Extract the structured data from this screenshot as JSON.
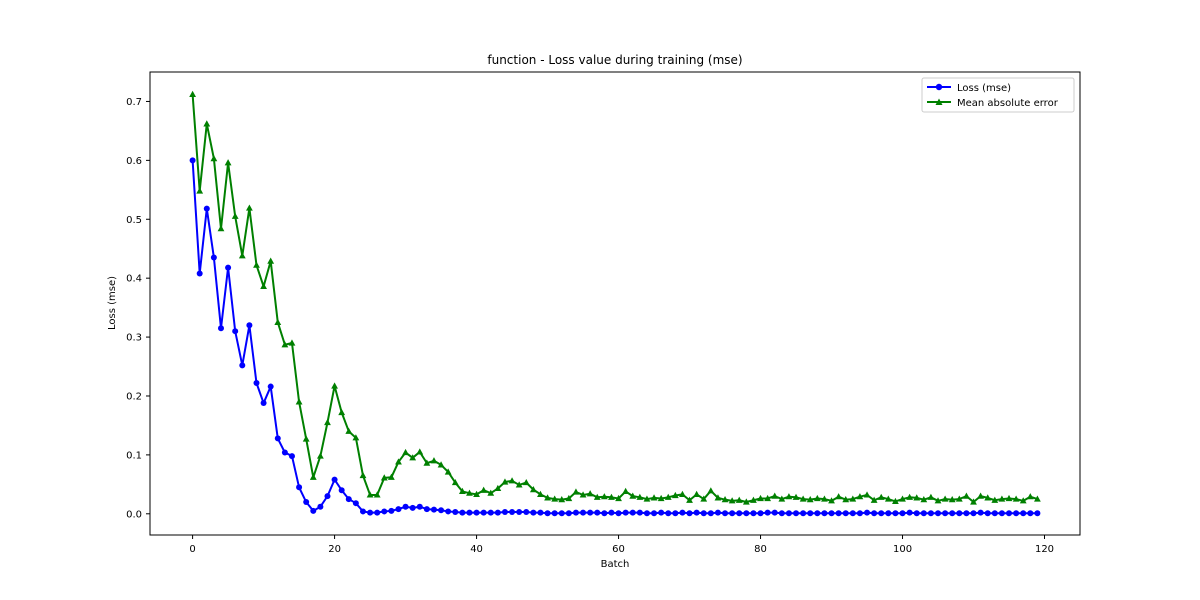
{
  "chart_data": {
    "type": "line",
    "title": "function - Loss value during training (mse)",
    "xlabel": "Batch",
    "ylabel": "Loss (mse)",
    "xlim": [
      -6,
      125
    ],
    "ylim": [
      -0.036,
      0.75
    ],
    "xticks": [
      0,
      20,
      40,
      60,
      80,
      100,
      120
    ],
    "yticks": [
      0.0,
      0.1,
      0.2,
      0.3,
      0.4,
      0.5,
      0.6,
      0.7
    ],
    "legend_position": "top-right",
    "grid": false,
    "x": [
      0,
      1,
      2,
      3,
      4,
      5,
      6,
      7,
      8,
      9,
      10,
      11,
      12,
      13,
      14,
      15,
      16,
      17,
      18,
      19,
      20,
      21,
      22,
      23,
      24,
      25,
      26,
      27,
      28,
      29,
      30,
      31,
      32,
      33,
      34,
      35,
      36,
      37,
      38,
      39,
      40,
      41,
      42,
      43,
      44,
      45,
      46,
      47,
      48,
      49,
      50,
      51,
      52,
      53,
      54,
      55,
      56,
      57,
      58,
      59,
      60,
      61,
      62,
      63,
      64,
      65,
      66,
      67,
      68,
      69,
      70,
      71,
      72,
      73,
      74,
      75,
      76,
      77,
      78,
      79,
      80,
      81,
      82,
      83,
      84,
      85,
      86,
      87,
      88,
      89,
      90,
      91,
      92,
      93,
      94,
      95,
      96,
      97,
      98,
      99,
      100,
      101,
      102,
      103,
      104,
      105,
      106,
      107,
      108,
      109,
      110,
      111,
      112,
      113,
      114,
      115,
      116,
      117,
      118,
      119
    ],
    "series": [
      {
        "name": "Loss (mse)",
        "color": "#0000ff",
        "marker": "circle",
        "values": [
          0.6,
          0.408,
          0.518,
          0.435,
          0.315,
          0.418,
          0.31,
          0.252,
          0.32,
          0.222,
          0.188,
          0.216,
          0.128,
          0.104,
          0.098,
          0.045,
          0.02,
          0.005,
          0.012,
          0.03,
          0.058,
          0.04,
          0.025,
          0.018,
          0.004,
          0.002,
          0.002,
          0.004,
          0.005,
          0.008,
          0.012,
          0.01,
          0.012,
          0.008,
          0.007,
          0.006,
          0.004,
          0.003,
          0.002,
          0.002,
          0.002,
          0.002,
          0.002,
          0.002,
          0.003,
          0.003,
          0.003,
          0.003,
          0.002,
          0.002,
          0.001,
          0.001,
          0.001,
          0.001,
          0.002,
          0.002,
          0.002,
          0.002,
          0.001,
          0.002,
          0.001,
          0.002,
          0.002,
          0.002,
          0.001,
          0.001,
          0.002,
          0.001,
          0.001,
          0.002,
          0.001,
          0.002,
          0.001,
          0.001,
          0.002,
          0.001,
          0.001,
          0.001,
          0.001,
          0.001,
          0.001,
          0.002,
          0.002,
          0.001,
          0.001,
          0.001,
          0.001,
          0.001,
          0.001,
          0.001,
          0.001,
          0.001,
          0.001,
          0.001,
          0.001,
          0.002,
          0.001,
          0.001,
          0.001,
          0.001,
          0.001,
          0.002,
          0.001,
          0.001,
          0.001,
          0.001,
          0.001,
          0.001,
          0.001,
          0.001,
          0.001,
          0.002,
          0.001,
          0.001,
          0.001,
          0.001,
          0.001,
          0.001,
          0.001,
          0.001
        ]
      },
      {
        "name": "Mean absolute error",
        "color": "#008000",
        "marker": "triangle",
        "values": [
          0.712,
          0.548,
          0.662,
          0.603,
          0.484,
          0.596,
          0.505,
          0.438,
          0.519,
          0.422,
          0.386,
          0.429,
          0.325,
          0.287,
          0.29,
          0.19,
          0.127,
          0.062,
          0.098,
          0.155,
          0.217,
          0.172,
          0.14,
          0.129,
          0.065,
          0.032,
          0.032,
          0.061,
          0.062,
          0.088,
          0.104,
          0.095,
          0.105,
          0.086,
          0.09,
          0.083,
          0.071,
          0.053,
          0.038,
          0.035,
          0.033,
          0.04,
          0.035,
          0.043,
          0.054,
          0.056,
          0.049,
          0.053,
          0.041,
          0.033,
          0.027,
          0.025,
          0.024,
          0.026,
          0.037,
          0.032,
          0.034,
          0.028,
          0.029,
          0.028,
          0.026,
          0.038,
          0.03,
          0.028,
          0.025,
          0.027,
          0.026,
          0.028,
          0.031,
          0.033,
          0.023,
          0.033,
          0.025,
          0.039,
          0.027,
          0.024,
          0.022,
          0.023,
          0.02,
          0.023,
          0.026,
          0.026,
          0.03,
          0.025,
          0.029,
          0.028,
          0.025,
          0.024,
          0.026,
          0.025,
          0.022,
          0.029,
          0.024,
          0.025,
          0.029,
          0.032,
          0.023,
          0.028,
          0.025,
          0.021,
          0.025,
          0.028,
          0.027,
          0.024,
          0.028,
          0.022,
          0.025,
          0.024,
          0.025,
          0.03,
          0.02,
          0.03,
          0.027,
          0.023,
          0.025,
          0.026,
          0.025,
          0.022,
          0.029,
          0.025
        ]
      }
    ]
  }
}
